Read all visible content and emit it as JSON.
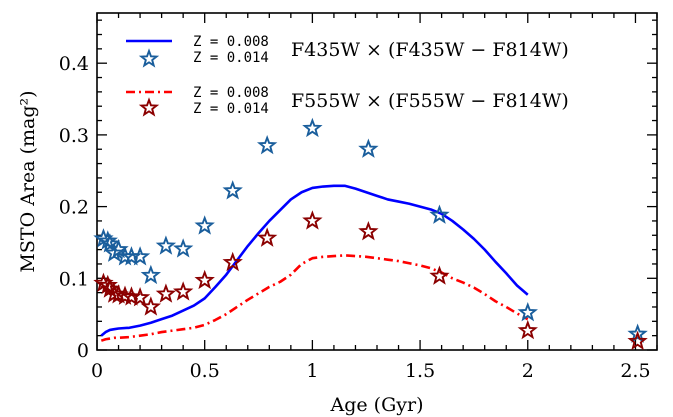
{
  "chart_data": {
    "type": "line",
    "xlabel": "Age (Gyr)",
    "ylabel": "MSTO Area (mag²)",
    "xlim": [
      0,
      2.6
    ],
    "ylim": [
      0,
      0.47
    ],
    "xticks": [
      0,
      0.5,
      1,
      1.5,
      2,
      2.5
    ],
    "xtick_labels": [
      "0",
      "0.5",
      "1",
      "1.5",
      "2",
      "2.5"
    ],
    "yticks": [
      0,
      0.1,
      0.2,
      0.3,
      0.4
    ],
    "ytick_labels": [
      "0",
      "0.1",
      "0.2",
      "0.3",
      "0.4"
    ],
    "grid": false,
    "legend_placement": "top-left",
    "legend_groups": [
      {
        "title": "F435W × (F435W − F814W)",
        "line_label": "Z = 0.008",
        "marker_label": "Z = 0.014"
      },
      {
        "title": "F555W × (F555W − F814W)",
        "line_label": "Z = 0.008",
        "marker_label": "Z = 0.014"
      }
    ],
    "series": [
      {
        "line_style": "solid",
        "color": "#0000ff",
        "x": [
          0.02,
          0.04,
          0.06,
          0.08,
          0.1,
          0.15,
          0.2,
          0.25,
          0.3,
          0.35,
          0.4,
          0.45,
          0.5,
          0.55,
          0.6,
          0.65,
          0.7,
          0.75,
          0.8,
          0.85,
          0.9,
          0.95,
          1.0,
          1.05,
          1.1,
          1.15,
          1.2,
          1.25,
          1.3,
          1.35,
          1.4,
          1.45,
          1.5,
          1.55,
          1.6,
          1.65,
          1.7,
          1.75,
          1.8,
          1.85,
          1.9,
          1.95,
          2.0
        ],
        "y": [
          0.02,
          0.025,
          0.028,
          0.029,
          0.03,
          0.031,
          0.034,
          0.038,
          0.043,
          0.048,
          0.055,
          0.062,
          0.072,
          0.088,
          0.105,
          0.125,
          0.145,
          0.163,
          0.18,
          0.195,
          0.21,
          0.22,
          0.226,
          0.228,
          0.229,
          0.229,
          0.225,
          0.22,
          0.215,
          0.21,
          0.207,
          0.204,
          0.2,
          0.196,
          0.19,
          0.18,
          0.168,
          0.155,
          0.14,
          0.123,
          0.107,
          0.09,
          0.077
        ]
      },
      {
        "line_style": "dash-dot",
        "color": "#ff0000",
        "x": [
          0.02,
          0.04,
          0.06,
          0.08,
          0.1,
          0.15,
          0.2,
          0.25,
          0.3,
          0.35,
          0.4,
          0.45,
          0.5,
          0.55,
          0.6,
          0.65,
          0.7,
          0.75,
          0.8,
          0.85,
          0.9,
          0.95,
          1.0,
          1.05,
          1.1,
          1.15,
          1.2,
          1.25,
          1.3,
          1.35,
          1.4,
          1.45,
          1.5,
          1.55,
          1.6,
          1.65,
          1.7,
          1.75,
          1.8,
          1.85,
          1.9,
          1.95,
          2.0
        ],
        "y": [
          0.013,
          0.015,
          0.016,
          0.017,
          0.017,
          0.018,
          0.02,
          0.022,
          0.025,
          0.027,
          0.029,
          0.031,
          0.035,
          0.042,
          0.05,
          0.06,
          0.07,
          0.079,
          0.088,
          0.095,
          0.105,
          0.12,
          0.128,
          0.13,
          0.131,
          0.132,
          0.131,
          0.13,
          0.128,
          0.126,
          0.124,
          0.121,
          0.118,
          0.114,
          0.108,
          0.1,
          0.094,
          0.087,
          0.078,
          0.068,
          0.06,
          0.051,
          0.043
        ]
      },
      {
        "marker": "star",
        "color": "#1a5e9c",
        "x": [
          0.03,
          0.05,
          0.06,
          0.08,
          0.1,
          0.13,
          0.16,
          0.2,
          0.25,
          0.32,
          0.4,
          0.5,
          0.63,
          0.79,
          1.0,
          1.26,
          1.59,
          2.0,
          2.51
        ],
        "y": [
          0.155,
          0.152,
          0.148,
          0.135,
          0.14,
          0.13,
          0.13,
          0.13,
          0.104,
          0.145,
          0.141,
          0.173,
          0.222,
          0.285,
          0.309,
          0.28,
          0.188,
          0.052,
          0.022
        ]
      },
      {
        "marker": "star",
        "color": "#8b0000",
        "x": [
          0.03,
          0.05,
          0.06,
          0.08,
          0.1,
          0.13,
          0.16,
          0.2,
          0.25,
          0.32,
          0.4,
          0.5,
          0.63,
          0.79,
          1.0,
          1.26,
          1.59,
          2.0,
          2.51
        ],
        "y": [
          0.093,
          0.09,
          0.085,
          0.078,
          0.077,
          0.075,
          0.074,
          0.073,
          0.06,
          0.078,
          0.081,
          0.097,
          0.122,
          0.156,
          0.18,
          0.165,
          0.103,
          0.027,
          0.012
        ]
      }
    ]
  }
}
